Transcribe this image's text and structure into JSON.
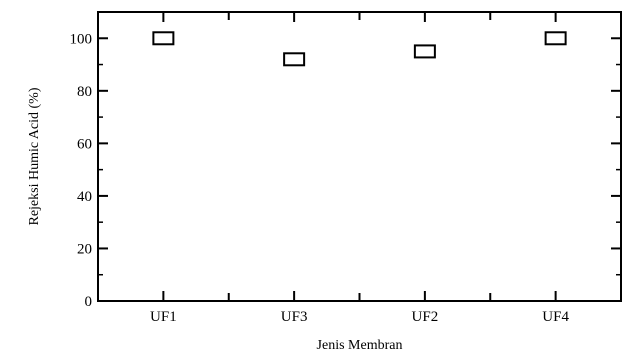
{
  "chart_data": {
    "type": "scatter",
    "title": "",
    "xlabel": "Jenis Membran",
    "ylabel": "Rejeksi Humic Acid (%)",
    "categories": [
      "UF1",
      "UF3",
      "UF2",
      "UF4"
    ],
    "series": [
      {
        "values": [
          100,
          92,
          95,
          100
        ],
        "marker": "open-square"
      }
    ],
    "ylim": [
      0,
      110
    ],
    "yticks": [
      0,
      20,
      40,
      60,
      80,
      100
    ],
    "grid": false,
    "colors": {
      "axis": "#000000",
      "marker_fill": "#ffffff",
      "marker_stroke": "#000000"
    }
  }
}
